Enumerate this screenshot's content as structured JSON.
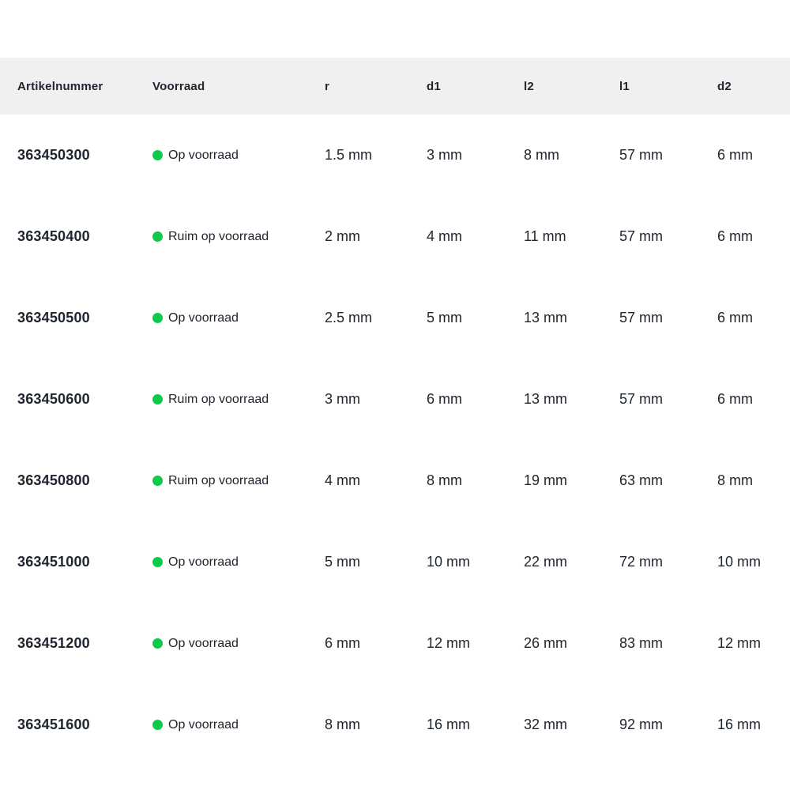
{
  "colors": {
    "stock_dot": "#0fc94b",
    "header_bg": "#f0f0f1",
    "text": "#20262f"
  },
  "table": {
    "columns": [
      {
        "key": "artikelnummer",
        "label": "Artikelnummer"
      },
      {
        "key": "voorraad",
        "label": "Voorraad"
      },
      {
        "key": "r",
        "label": "r"
      },
      {
        "key": "d1",
        "label": "d1"
      },
      {
        "key": "l2",
        "label": "l2"
      },
      {
        "key": "l1",
        "label": "l1"
      },
      {
        "key": "d2",
        "label": "d2"
      }
    ],
    "rows": [
      {
        "artikelnummer": "363450300",
        "voorraad": "Op voorraad",
        "r": "1.5 mm",
        "d1": "3 mm",
        "l2": "8 mm",
        "l1": "57 mm",
        "d2": "6 mm"
      },
      {
        "artikelnummer": "363450400",
        "voorraad": "Ruim op voorraad",
        "r": "2 mm",
        "d1": "4 mm",
        "l2": "11 mm",
        "l1": "57 mm",
        "d2": "6 mm"
      },
      {
        "artikelnummer": "363450500",
        "voorraad": "Op voorraad",
        "r": "2.5 mm",
        "d1": "5 mm",
        "l2": "13 mm",
        "l1": "57 mm",
        "d2": "6 mm"
      },
      {
        "artikelnummer": "363450600",
        "voorraad": "Ruim op voorraad",
        "r": "3 mm",
        "d1": "6 mm",
        "l2": "13 mm",
        "l1": "57 mm",
        "d2": "6 mm"
      },
      {
        "artikelnummer": "363450800",
        "voorraad": "Ruim op voorraad",
        "r": "4 mm",
        "d1": "8 mm",
        "l2": "19 mm",
        "l1": "63 mm",
        "d2": "8 mm"
      },
      {
        "artikelnummer": "363451000",
        "voorraad": "Op voorraad",
        "r": "5 mm",
        "d1": "10 mm",
        "l2": "22 mm",
        "l1": "72 mm",
        "d2": "10 mm"
      },
      {
        "artikelnummer": "363451200",
        "voorraad": "Op voorraad",
        "r": "6 mm",
        "d1": "12 mm",
        "l2": "26 mm",
        "l1": "83 mm",
        "d2": "12 mm"
      },
      {
        "artikelnummer": "363451600",
        "voorraad": "Op voorraad",
        "r": "8 mm",
        "d1": "16 mm",
        "l2": "32 mm",
        "l1": "92 mm",
        "d2": "16 mm"
      }
    ]
  }
}
